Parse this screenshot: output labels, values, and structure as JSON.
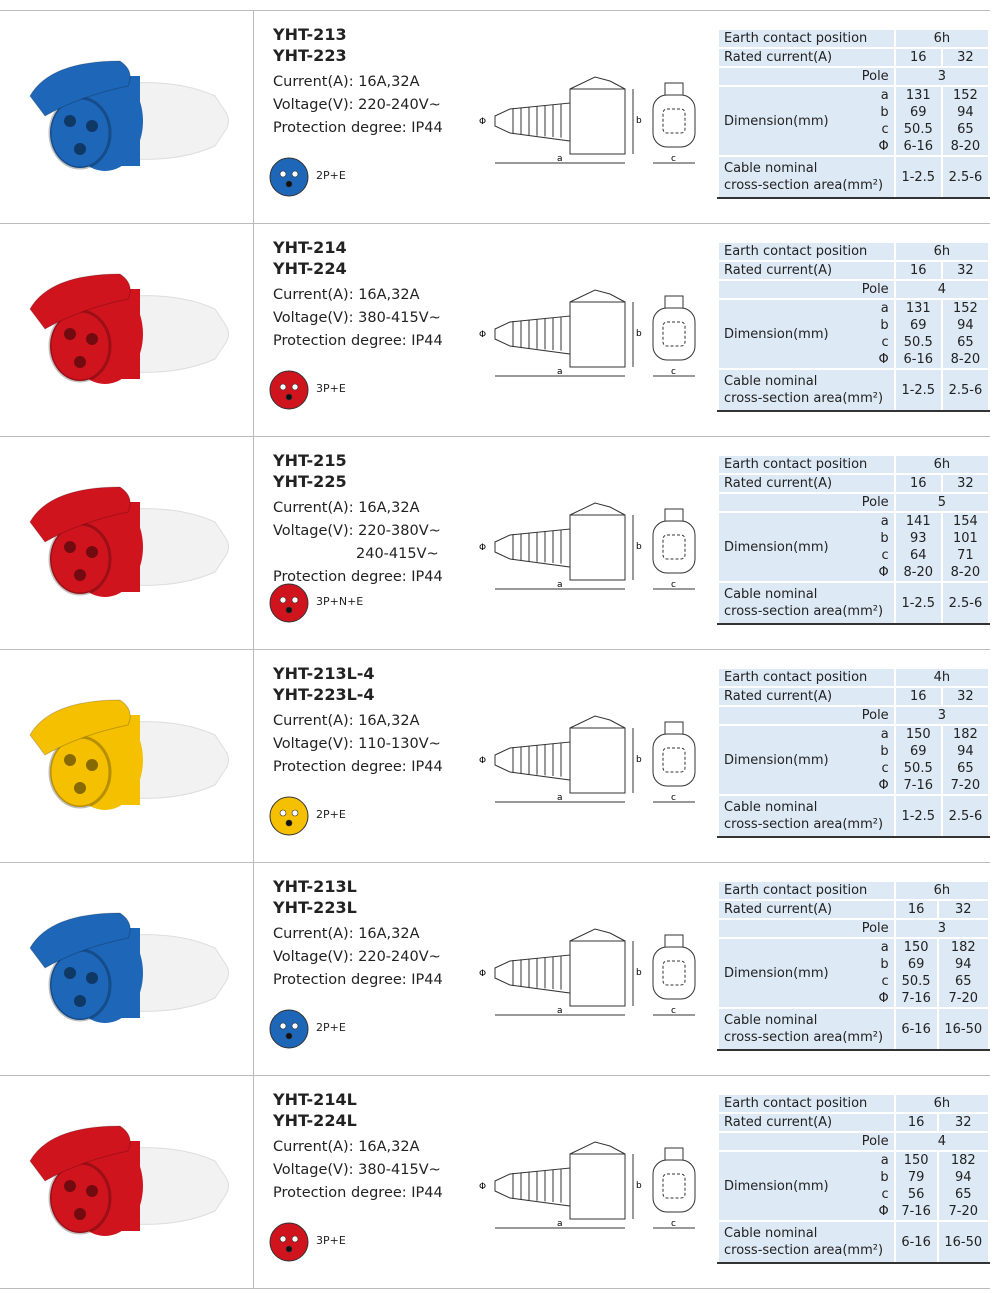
{
  "table_labels": {
    "earth": "Earth contact position",
    "rated": "Rated current(A)",
    "pole": "Pole",
    "dimension": "Dimension(mm)",
    "dims": [
      "a",
      "b",
      "c",
      "Φ"
    ],
    "cable": [
      "Cable nominal",
      "cross-section area(mm²)"
    ]
  },
  "drawing_labels": {
    "a": "a",
    "b": "b",
    "c": "c",
    "phi": "Φ"
  },
  "products": [
    {
      "models": [
        "YHT-213",
        "YHT-223"
      ],
      "specs": [
        "Current(A): 16A,32A",
        "Voltage(V): 220-240V~",
        "Protection degree: IP44"
      ],
      "pins": "2P+E",
      "color": "#1d66b8",
      "earth": "6h",
      "current": [
        "16",
        "32"
      ],
      "pole": "3",
      "dims": [
        [
          "131",
          "152"
        ],
        [
          "69",
          "94"
        ],
        [
          "50.5",
          "65"
        ],
        [
          "6-16",
          "8-20"
        ]
      ],
      "cable": [
        "1-2.5",
        "2.5-6"
      ]
    },
    {
      "models": [
        "YHT-214",
        "YHT-224"
      ],
      "specs": [
        "Current(A): 16A,32A",
        "Voltage(V): 380-415V~",
        "Protection degree: IP44"
      ],
      "pins": "3P+E",
      "color": "#d0141e",
      "earth": "6h",
      "current": [
        "16",
        "32"
      ],
      "pole": "4",
      "dims": [
        [
          "131",
          "152"
        ],
        [
          "69",
          "94"
        ],
        [
          "50.5",
          "65"
        ],
        [
          "6-16",
          "8-20"
        ]
      ],
      "cable": [
        "1-2.5",
        "2.5-6"
      ]
    },
    {
      "models": [
        "YHT-215",
        "YHT-225"
      ],
      "specs": [
        "Current(A): 16A,32A",
        "Voltage(V): 220-380V~",
        "240-415V~",
        "Protection degree: IP44"
      ],
      "pins": "3P+N+E",
      "color": "#d0141e",
      "earth": "6h",
      "current": [
        "16",
        "32"
      ],
      "pole": "5",
      "dims": [
        [
          "141",
          "154"
        ],
        [
          "93",
          "101"
        ],
        [
          "64",
          "71"
        ],
        [
          "8-20",
          "8-20"
        ]
      ],
      "cable": [
        "1-2.5",
        "2.5-6"
      ]
    },
    {
      "models": [
        "YHT-213L-4",
        "YHT-223L-4"
      ],
      "specs": [
        "Current(A): 16A,32A",
        "Voltage(V): 110-130V~",
        "Protection degree: IP44"
      ],
      "pins": "2P+E",
      "color": "#f5c000",
      "earth": "4h",
      "current": [
        "16",
        "32"
      ],
      "pole": "3",
      "dims": [
        [
          "150",
          "182"
        ],
        [
          "69",
          "94"
        ],
        [
          "50.5",
          "65"
        ],
        [
          "7-16",
          "7-20"
        ]
      ],
      "cable": [
        "1-2.5",
        "2.5-6"
      ]
    },
    {
      "models": [
        "YHT-213L",
        "YHT-223L"
      ],
      "specs": [
        "Current(A): 16A,32A",
        "Voltage(V): 220-240V~",
        "Protection degree: IP44"
      ],
      "pins": "2P+E",
      "color": "#1d66b8",
      "earth": "6h",
      "current": [
        "16",
        "32"
      ],
      "pole": "3",
      "dims": [
        [
          "150",
          "182"
        ],
        [
          "69",
          "94"
        ],
        [
          "50.5",
          "65"
        ],
        [
          "7-16",
          "7-20"
        ]
      ],
      "cable": [
        "6-16",
        "16-50"
      ]
    },
    {
      "models": [
        "YHT-214L",
        "YHT-224L"
      ],
      "specs": [
        "Current(A): 16A,32A",
        "Voltage(V): 380-415V~",
        "Protection degree: IP44"
      ],
      "pins": "3P+E",
      "color": "#d0141e",
      "earth": "6h",
      "current": [
        "16",
        "32"
      ],
      "pole": "4",
      "dims": [
        [
          "150",
          "182"
        ],
        [
          "79",
          "94"
        ],
        [
          "56",
          "65"
        ],
        [
          "7-16",
          "7-20"
        ]
      ],
      "cable": [
        "6-16",
        "16-50"
      ]
    }
  ]
}
